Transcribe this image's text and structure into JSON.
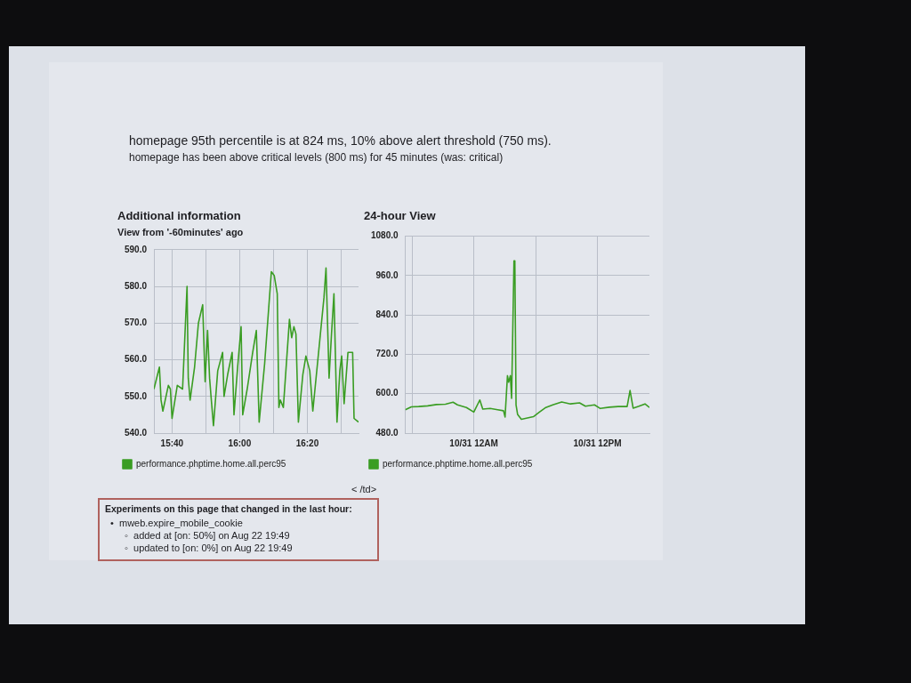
{
  "chart_data": [
    {
      "type": "line",
      "title": "Additional information",
      "subtitle": "View from '-60minutes' ago",
      "annotations": [
        "homepage 95th percentile is at 824 ms, 10% above alert threshold (750 ms).",
        "homepage has been above critical levels (800 ms) for 45 minutes (was: critical)",
        "< /td>",
        "Experiments on this page that changed in the last hour:",
        "•  mweb.expire_mobile_cookie",
        "◦  added at [on: 50%] on Aug 22 19:49",
        "◦  updated to [on: 0%] on Aug 22 19:49"
      ],
      "x": [
        15.578,
        15.605,
        15.613,
        15.622,
        15.649,
        15.659,
        15.667,
        15.693,
        15.719,
        15.741,
        15.747,
        15.756,
        15.778,
        15.797,
        15.818,
        15.83,
        15.842,
        15.852,
        15.859,
        15.871,
        15.892,
        15.916,
        15.923,
        15.941,
        15.963,
        15.972,
        15.99,
        16.007,
        16.015,
        16.037,
        16.064,
        16.082,
        16.096,
        16.123,
        16.156,
        16.17,
        16.185,
        16.193,
        16.2,
        16.215,
        16.245,
        16.256,
        16.267,
        16.277,
        16.289,
        16.311,
        16.326,
        16.345,
        16.36,
        16.415,
        16.425,
        16.44,
        16.452,
        16.464,
        16.479,
        16.493,
        16.502,
        16.514,
        16.533,
        16.556,
        16.563,
        16.585
      ],
      "series": [
        {
          "name": "performance.phptime.home.all.perc95",
          "color": "#3a9d23",
          "values": [
            552,
            558,
            549,
            546,
            553,
            552,
            544,
            553,
            552,
            580,
            555,
            549,
            558,
            570,
            575,
            554,
            568,
            555,
            550,
            542,
            557,
            562,
            550,
            556,
            562,
            545,
            558,
            569,
            545,
            552,
            562,
            568,
            543,
            559,
            584,
            583,
            578,
            547,
            549,
            547,
            571,
            566,
            569,
            567,
            543,
            556,
            561,
            557,
            546,
            577,
            585,
            555,
            567,
            578,
            543,
            557,
            561,
            548,
            562,
            562,
            544,
            543
          ]
        }
      ],
      "xlim": [
        15.578,
        16.585
      ],
      "xticks": [
        {
          "value": 15.667,
          "label": "15:40"
        },
        {
          "value": 15.833,
          "label": null
        },
        {
          "value": 16.0,
          "label": "16:00"
        },
        {
          "value": 16.167,
          "label": null
        },
        {
          "value": 16.333,
          "label": "16:20"
        },
        {
          "value": 16.5,
          "label": null
        }
      ],
      "ylim": [
        540,
        590
      ],
      "yticks": [
        {
          "value": 540,
          "label": "540.0"
        },
        {
          "value": 550,
          "label": "550.0"
        },
        {
          "value": 560,
          "label": "560.0"
        },
        {
          "value": 570,
          "label": "570.0"
        },
        {
          "value": 580,
          "label": "580.0"
        },
        {
          "value": 590,
          "label": "590.0"
        }
      ],
      "grid": true,
      "legend": "bottom left"
    },
    {
      "type": "line",
      "title": "24-hour View",
      "x": [
        "--10-30T17:21",
        "--10-30T17:56",
        "--10-30T18:39",
        "--10-30T19:31",
        "--10-30T20:23",
        "--10-30T21:15",
        "--10-30T21:59",
        "--10-30T22:25",
        "--10-30T23:17",
        "--10-31T00:00",
        "--10-31T00:35",
        "--10-31T00:52",
        "--10-31T01:35",
        "--10-31T02:19",
        "--10-31T02:53",
        "--10-31T03:02",
        "--10-31T03:16",
        "--10-31T03:23",
        "--10-31T03:33",
        "--10-31T03:40",
        "--10-31T03:54",
        "--10-31T03:59",
        "--10-31T04:06",
        "--10-31T04:15",
        "--10-31T04:37",
        "--10-31T05:12",
        "--10-31T05:47",
        "--10-31T06:22",
        "--10-31T06:56",
        "--10-31T07:40",
        "--10-31T08:32",
        "--10-31T09:23",
        "--10-31T10:16",
        "--10-31T10:50",
        "--10-31T11:43",
        "--10-31T12:17",
        "--10-31T13:09",
        "--10-31T14:01",
        "--10-31T14:53",
        "--10-31T15:10",
        "--10-31T15:28",
        "--10-31T16:02",
        "--10-31T16:37",
        "--10-31T17:03"
      ],
      "series": [
        {
          "name": "performance.phptime.home.all.perc95",
          "color": "#3a9d23",
          "values": [
            551,
            560,
            561,
            563,
            567,
            568,
            574,
            566,
            558,
            544,
            581,
            553,
            555,
            551,
            548,
            529,
            655,
            635,
            655,
            586,
            1005,
            1005,
            566,
            537,
            522,
            526,
            530,
            544,
            557,
            566,
            575,
            569,
            572,
            562,
            566,
            555,
            559,
            561,
            561,
            610,
            556,
            562,
            569,
            558
          ]
        }
      ],
      "xlim": [
        "--10-30T17:21",
        "--10-31T17:03"
      ],
      "xticks": [
        {
          "value": "--10-30T18:00",
          "label": null
        },
        {
          "value": "--10-31T00:00",
          "label": "10/31 12AM"
        },
        {
          "value": "--10-31T06:00",
          "label": null
        },
        {
          "value": "--10-31T12:00",
          "label": "10/31 12PM"
        }
      ],
      "ylim": [
        480,
        1080
      ],
      "yticks": [
        {
          "value": 480,
          "label": "480.0"
        },
        {
          "value": 600,
          "label": "600.0"
        },
        {
          "value": 720,
          "label": "720.0"
        },
        {
          "value": 840,
          "label": "840.0"
        },
        {
          "value": 960,
          "label": "960.0"
        },
        {
          "value": 1080,
          "label": "1080.0"
        }
      ],
      "grid": true,
      "legend": "bottom left"
    }
  ]
}
